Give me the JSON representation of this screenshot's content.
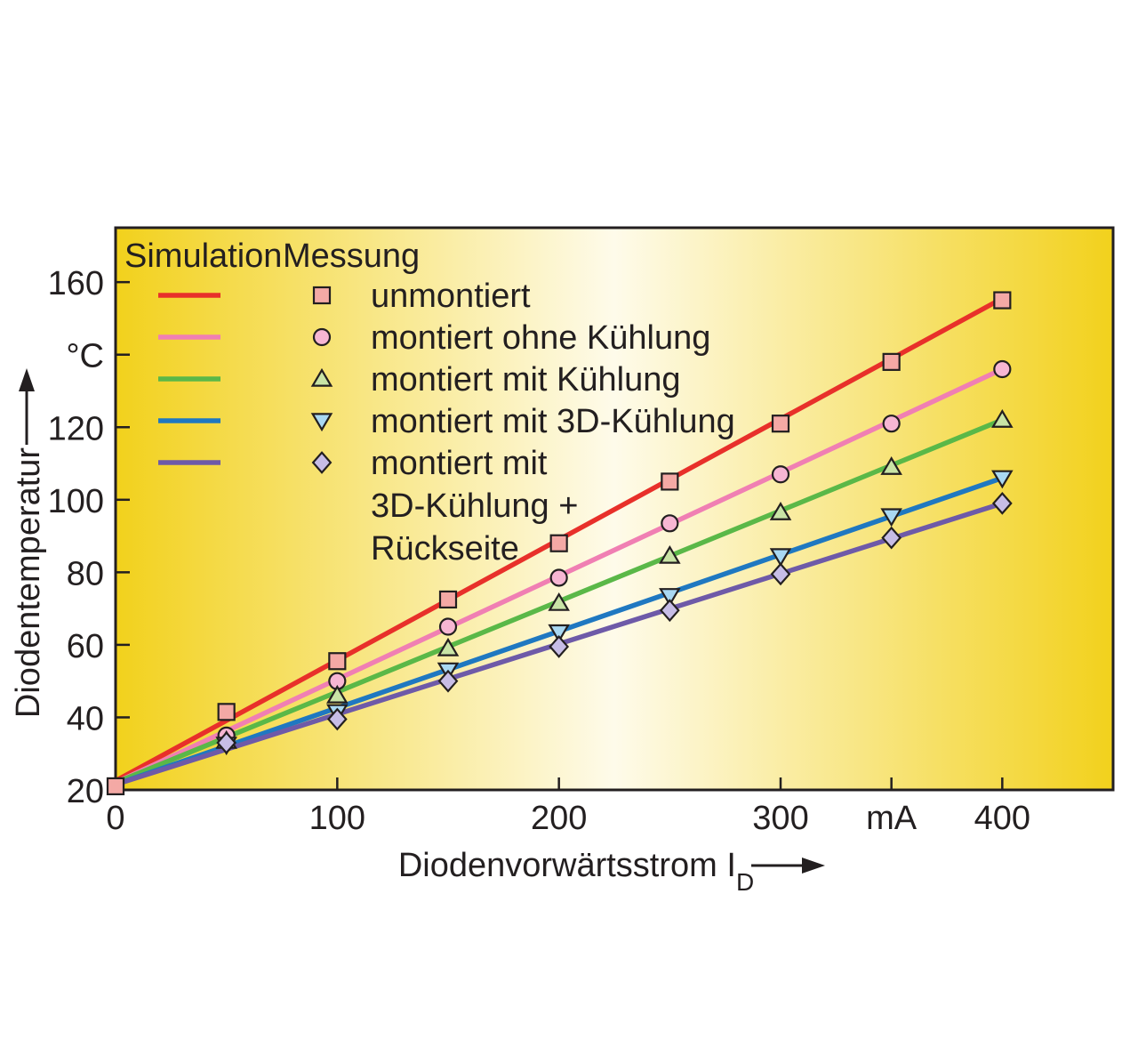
{
  "chart_data": {
    "type": "line",
    "x": [
      0,
      50,
      100,
      150,
      200,
      250,
      300,
      350,
      400
    ],
    "xlim": [
      0,
      450
    ],
    "ylim": [
      20,
      175
    ],
    "xticks": [
      0,
      100,
      200,
      300,
      400
    ],
    "xtick_labels": [
      "0",
      "100",
      "200",
      "300",
      "400"
    ],
    "x_unit_label": "mA",
    "yticks": [
      20,
      40,
      60,
      80,
      100,
      120,
      160
    ],
    "ytick_labels": [
      "20",
      "40",
      "60",
      "80",
      "100",
      "120",
      "160"
    ],
    "y_unit_label": "°C",
    "xlabel_main": "Diodenvorwärtsstrom I",
    "xlabel_sub": "D",
    "ylabel": "Diodentemperatur",
    "legend": {
      "header_simulation": "Simulation",
      "header_measurement": "Messung",
      "placement": "top-left"
    },
    "background": {
      "edge_color": "#f2d11c",
      "center_color": "#fefbea",
      "border_color": "#231f20"
    },
    "series": [
      {
        "name": "unmontiert",
        "name_lines": [
          "unmontiert"
        ],
        "line_color": "#e8302a",
        "marker": "square",
        "marker_fill": "#f4a9a5",
        "simulation_endpoints": [
          [
            0,
            22.5
          ],
          [
            400,
            155.5
          ]
        ],
        "measured": [
          [
            0,
            21
          ],
          [
            50,
            41.5
          ],
          [
            100,
            55.5
          ],
          [
            150,
            72.5
          ],
          [
            200,
            88
          ],
          [
            250,
            105
          ],
          [
            300,
            121
          ],
          [
            350,
            138
          ],
          [
            400,
            155
          ]
        ]
      },
      {
        "name": "montiert ohne Kühlung",
        "name_lines": [
          "montiert ohne Kühlung"
        ],
        "line_color": "#f07fb3",
        "marker": "circle",
        "marker_fill": "#f7b6d3",
        "simulation_endpoints": [
          [
            0,
            22
          ],
          [
            400,
            136
          ]
        ],
        "measured": [
          [
            50,
            35
          ],
          [
            100,
            50
          ],
          [
            150,
            65
          ],
          [
            200,
            78.5
          ],
          [
            250,
            93.5
          ],
          [
            300,
            107
          ],
          [
            350,
            121
          ],
          [
            400,
            136
          ]
        ]
      },
      {
        "name": "montiert mit Kühlung",
        "name_lines": [
          "montiert mit Kühlung"
        ],
        "line_color": "#5ab848",
        "marker": "triangle-up",
        "marker_fill": "#c9e4a6",
        "simulation_endpoints": [
          [
            0,
            22
          ],
          [
            400,
            122
          ]
        ],
        "measured": [
          [
            50,
            33.5
          ],
          [
            100,
            46
          ],
          [
            150,
            59
          ],
          [
            200,
            71.5
          ],
          [
            250,
            84.5
          ],
          [
            300,
            96.5
          ],
          [
            350,
            109
          ],
          [
            400,
            122
          ]
        ]
      },
      {
        "name": "montiert mit 3D-Kühlung",
        "name_lines": [
          "montiert mit 3D-Kühlung"
        ],
        "line_color": "#1f78c1",
        "marker": "triangle-down",
        "marker_fill": "#a9d8f2",
        "simulation_endpoints": [
          [
            0,
            21.5
          ],
          [
            400,
            106
          ]
        ],
        "measured": [
          [
            50,
            32.5
          ],
          [
            100,
            41.5
          ],
          [
            150,
            53
          ],
          [
            200,
            63.5
          ],
          [
            250,
            73.5
          ],
          [
            300,
            84.5
          ],
          [
            350,
            95.5
          ],
          [
            400,
            106
          ]
        ]
      },
      {
        "name": "montiert mit 3D-Kühlung + Rückseite",
        "name_lines": [
          "montiert mit",
          "3D-Kühlung +",
          "Rückseite"
        ],
        "line_color": "#6e5aa8",
        "marker": "diamond",
        "marker_fill": "#c7bde6",
        "simulation_endpoints": [
          [
            0,
            21.5
          ],
          [
            400,
            99
          ]
        ],
        "measured": [
          [
            50,
            33
          ],
          [
            100,
            39.5
          ],
          [
            150,
            50
          ],
          [
            200,
            59.5
          ],
          [
            250,
            69.5
          ],
          [
            300,
            79.5
          ],
          [
            350,
            89.5
          ],
          [
            400,
            99
          ]
        ]
      }
    ]
  }
}
